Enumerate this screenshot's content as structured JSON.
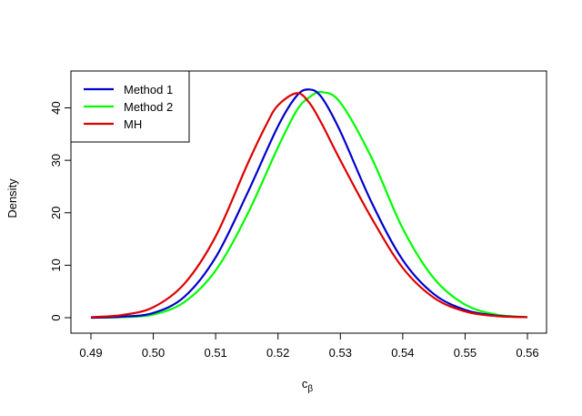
{
  "chart_data": {
    "type": "line",
    "title": "",
    "xlabel": "c",
    "xlabel_subscript": "β",
    "ylabel": "Density",
    "xlim": [
      0.49,
      0.56
    ],
    "ylim": [
      0,
      45
    ],
    "xticks": [
      0.49,
      0.5,
      0.51,
      0.52,
      0.53,
      0.54,
      0.55,
      0.56
    ],
    "xtick_labels": [
      "0.49",
      "0.50",
      "0.51",
      "0.52",
      "0.53",
      "0.54",
      "0.55",
      "0.56"
    ],
    "yticks": [
      0,
      10,
      20,
      30,
      40
    ],
    "ytick_labels": [
      "0",
      "10",
      "20",
      "30",
      "40"
    ],
    "grid": false,
    "legend_position": "top-left",
    "series": [
      {
        "name": "Method 1",
        "color": "#0000cd",
        "x": [
          0.49,
          0.495,
          0.5,
          0.505,
          0.51,
          0.515,
          0.52,
          0.523,
          0.525,
          0.527,
          0.53,
          0.535,
          0.54,
          0.545,
          0.55,
          0.555,
          0.56
        ],
        "y": [
          0.0,
          0.2,
          0.9,
          4.0,
          11.5,
          23.5,
          36.5,
          42.3,
          43.5,
          42.0,
          35.5,
          22.0,
          11.0,
          4.5,
          1.5,
          0.4,
          0.1
        ]
      },
      {
        "name": "Method 2",
        "color": "#00ff00",
        "x": [
          0.49,
          0.495,
          0.5,
          0.505,
          0.51,
          0.515,
          0.52,
          0.523,
          0.525,
          0.527,
          0.53,
          0.535,
          0.54,
          0.545,
          0.55,
          0.555,
          0.56
        ],
        "y": [
          0.0,
          0.1,
          0.6,
          3.0,
          9.0,
          19.5,
          32.5,
          39.5,
          42.0,
          43.0,
          41.0,
          30.5,
          17.0,
          7.5,
          2.5,
          0.6,
          0.1
        ]
      },
      {
        "name": "MH",
        "color": "#dd0000",
        "x": [
          0.49,
          0.495,
          0.5,
          0.505,
          0.51,
          0.515,
          0.518,
          0.52,
          0.523,
          0.525,
          0.527,
          0.53,
          0.535,
          0.54,
          0.545,
          0.55,
          0.555,
          0.56
        ],
        "y": [
          0.1,
          0.5,
          2.0,
          6.5,
          15.5,
          29.0,
          36.5,
          40.5,
          42.8,
          41.0,
          37.0,
          30.0,
          19.0,
          9.5,
          3.8,
          1.2,
          0.3,
          0.1
        ]
      }
    ]
  }
}
